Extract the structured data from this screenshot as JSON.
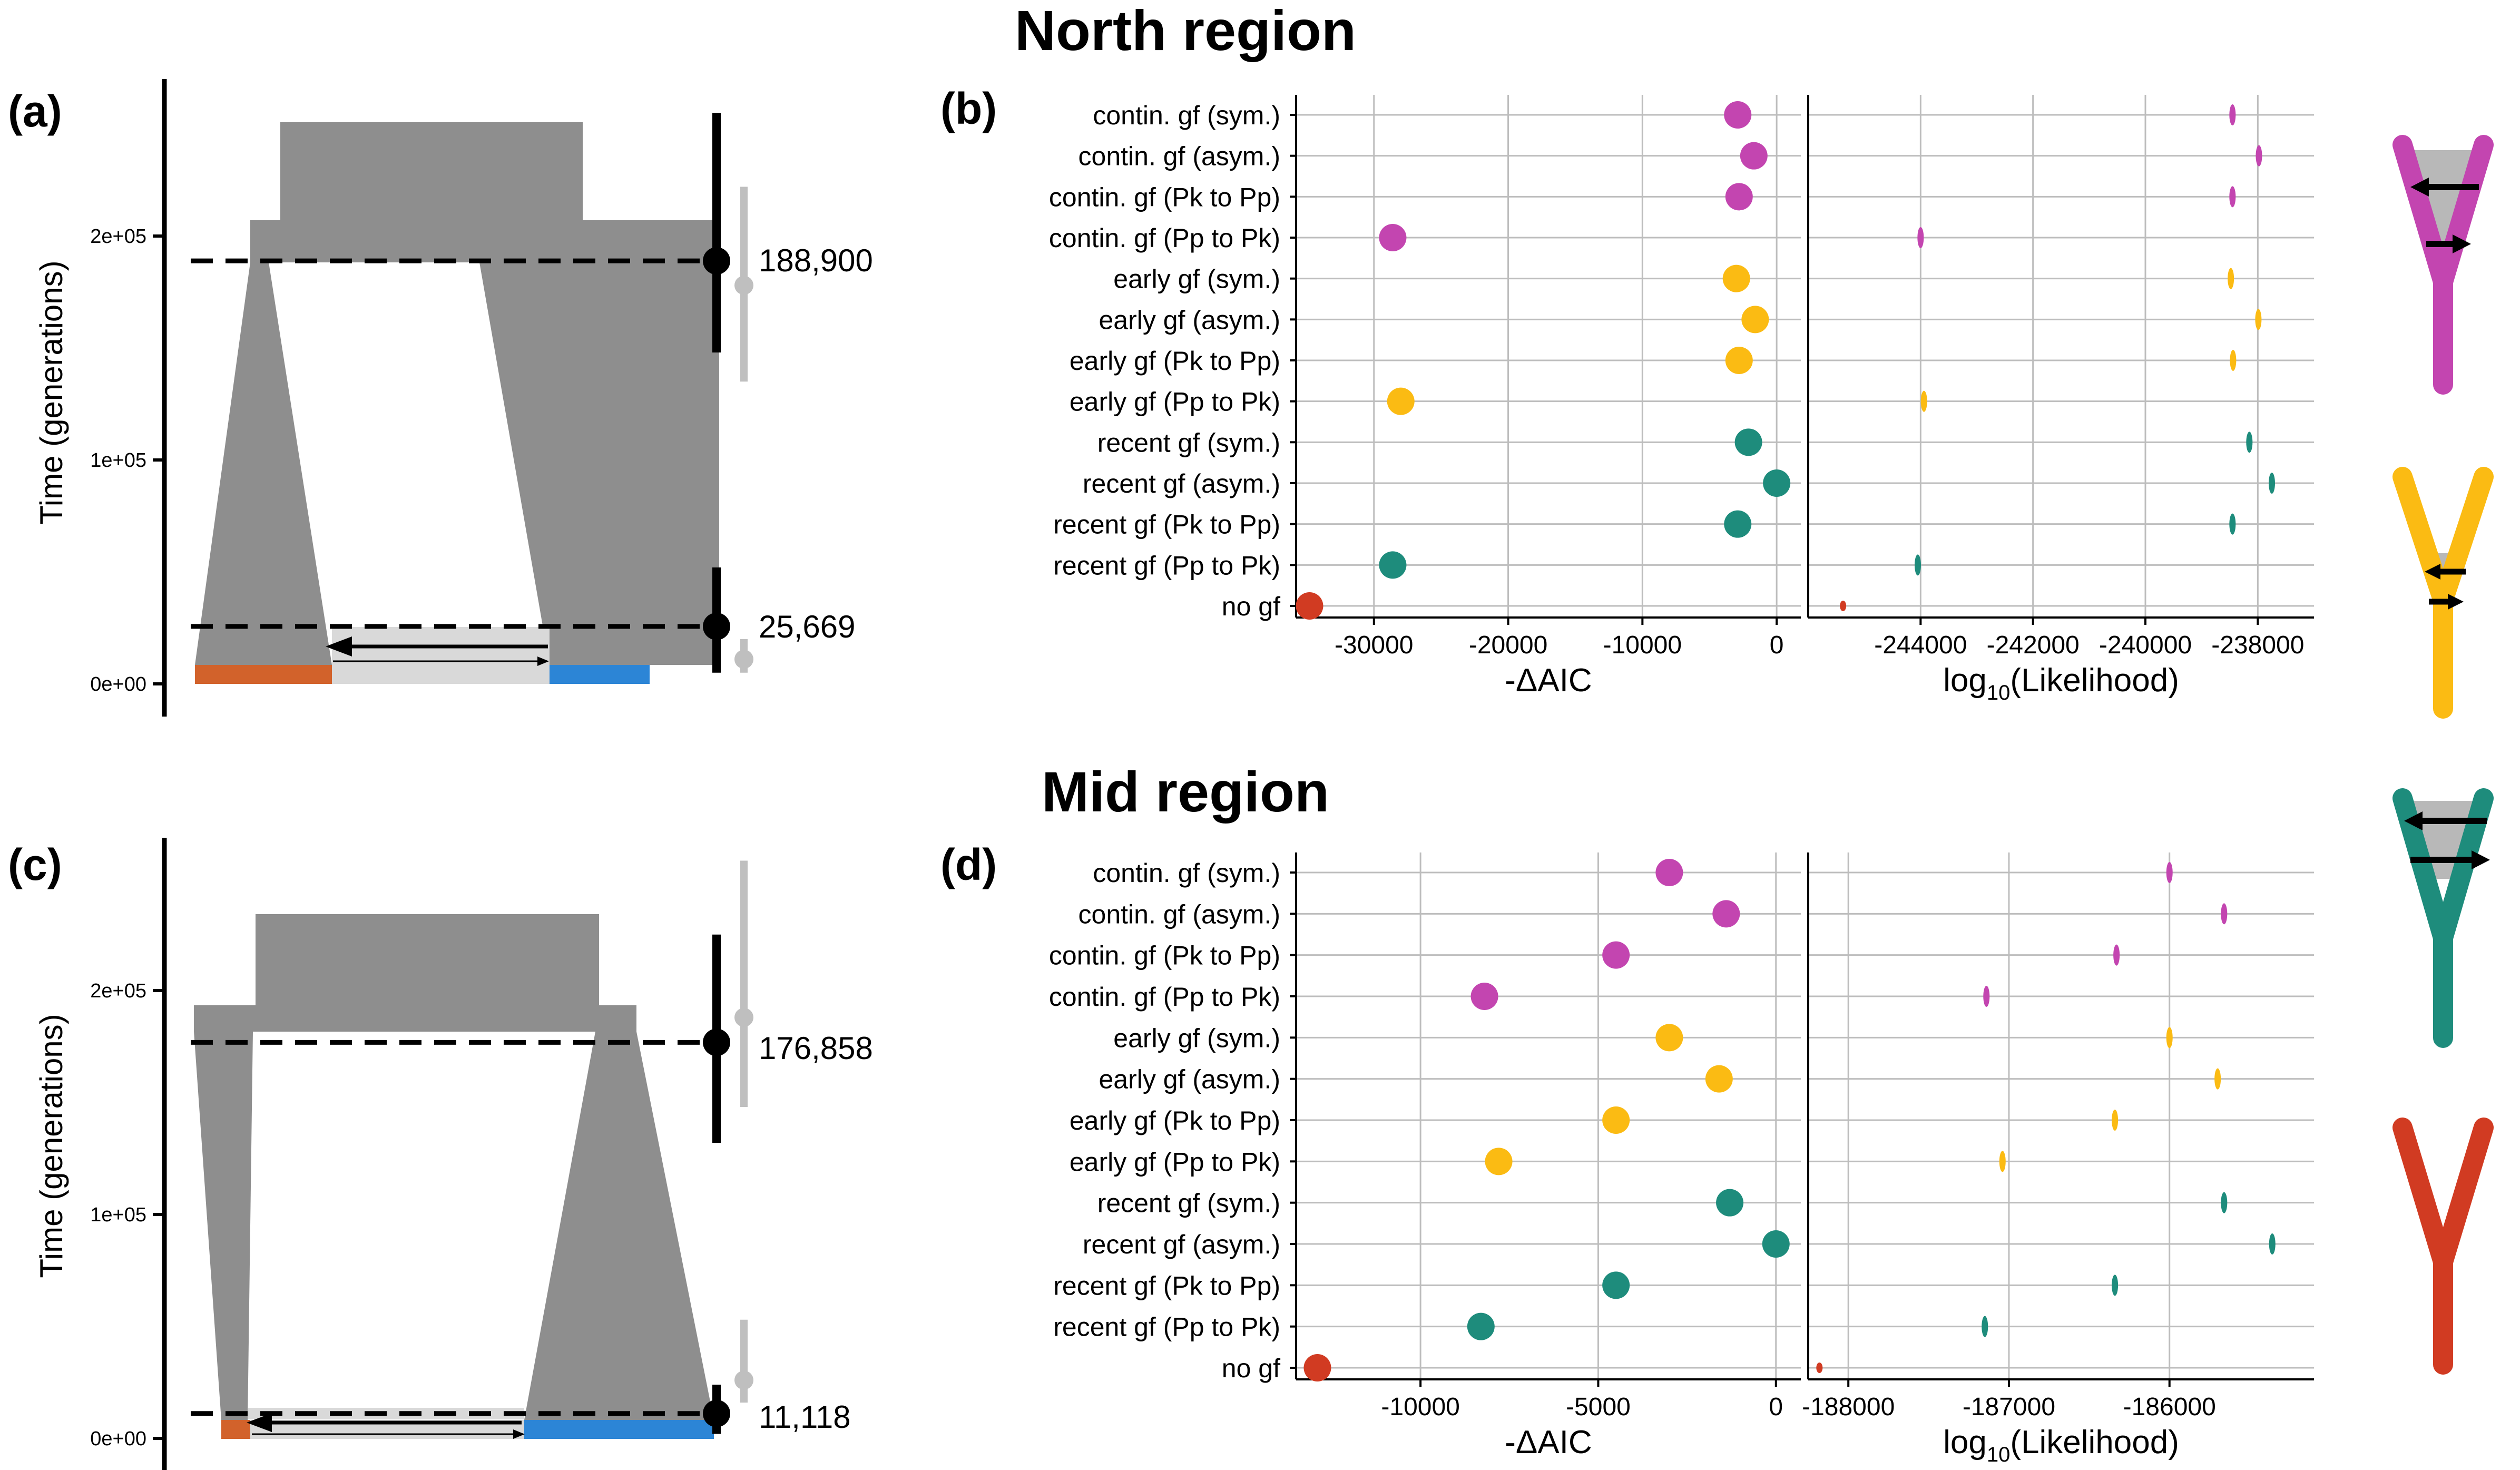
{
  "figure": {
    "north_title": "North region",
    "mid_title": "Mid region",
    "panel_labels": [
      "(a)",
      "(b)",
      "(c)",
      "(d)"
    ]
  },
  "colors": {
    "contin": "#C345B0",
    "early": "#FBBB13",
    "recent": "#1E8C7C",
    "nogf": "#D13B22",
    "orange_pop": "#D2622B",
    "blue_pop": "#2C85D6",
    "gray_pop": "#8E8E8E",
    "light_gray": "#D9D9D9"
  },
  "chart_data": [
    {
      "panel": "(a)",
      "type": "demography",
      "ylabel": "Time (generations)",
      "yticks": [
        "0e+00",
        "1e+05",
        "2e+05"
      ],
      "events": [
        {
          "time": 188900,
          "label": "188,900",
          "gray_ci": [
            135000,
            222000
          ],
          "black_ci": [
            148000,
            255000
          ],
          "gray_point": 178000
        },
        {
          "time": 25669,
          "label": "25,669",
          "gray_ci": [
            5000,
            20000
          ],
          "black_ci": [
            5000,
            52000
          ],
          "gray_point": 11000
        }
      ]
    },
    {
      "panel": "(b)",
      "type": "dot",
      "region": "North region",
      "categories": [
        "contin. gf (sym.)",
        "contin. gf (asym.)",
        "contin. gf (Pk to Pp)",
        "contin. gf (Pp to Pk)",
        "early gf (sym.)",
        "early gf (asym.)",
        "early gf (Pk to Pp)",
        "early gf (Pp to Pk)",
        "recent gf (sym.)",
        "recent gf (asym.)",
        "recent gf (Pk to Pp)",
        "recent gf (Pp to Pk)",
        "no gf"
      ],
      "groups": [
        "contin",
        "contin",
        "contin",
        "contin",
        "early",
        "early",
        "early",
        "early",
        "recent",
        "recent",
        "recent",
        "recent",
        "nogf"
      ],
      "left": {
        "xlabel": "-ΔAIC",
        "xlim": [
          -35800,
          1800
        ],
        "xticks": [
          -30000,
          -20000,
          -10000,
          0
        ],
        "xtick_labels": [
          "-30000",
          "-20000",
          "-10000",
          "0"
        ],
        "values": [
          -2900,
          -1700,
          -2800,
          -28600,
          -3000,
          -1600,
          -2800,
          -28000,
          -2100,
          0,
          -2900,
          -28600,
          -34800
        ]
      },
      "right": {
        "xlabel_main": "log",
        "xlabel_sub": "10",
        "xlabel_tail": "(Likelihood)",
        "xlim": [
          -246000,
          -237000
        ],
        "xticks": [
          -244000,
          -242000,
          -240000,
          -238000
        ],
        "xtick_labels": [
          "-244000",
          "-242000",
          "-240000",
          "-238000"
        ],
        "values": [
          -238450,
          -237980,
          -238450,
          -244000,
          -238480,
          -237990,
          -238440,
          -243940,
          -238150,
          -237750,
          -238450,
          -244050,
          -245380
        ]
      }
    },
    {
      "panel": "(c)",
      "type": "demography",
      "ylabel": "Time (generations)",
      "yticks": [
        "0e+00",
        "1e+05",
        "2e+05"
      ],
      "events": [
        {
          "time": 176858,
          "label": "176,858",
          "gray_ci": [
            148000,
            258000
          ],
          "black_ci": [
            132000,
            225000
          ],
          "gray_point": 188000
        },
        {
          "time": 11118,
          "label": "11,118",
          "gray_ci": [
            16000,
            53000
          ],
          "black_ci": [
            2000,
            24000
          ],
          "gray_point": 26000
        }
      ]
    },
    {
      "panel": "(d)",
      "type": "dot",
      "region": "Mid region",
      "categories": [
        "contin. gf (sym.)",
        "contin. gf (asym.)",
        "contin. gf (Pk to Pp)",
        "contin. gf (Pp to Pk)",
        "early gf (sym.)",
        "early gf (asym.)",
        "early gf (Pk to Pp)",
        "early gf (Pp to Pk)",
        "recent gf (sym.)",
        "recent gf (asym.)",
        "recent gf (Pk to Pp)",
        "recent gf (Pp to Pk)",
        "no gf"
      ],
      "groups": [
        "contin",
        "contin",
        "contin",
        "contin",
        "early",
        "early",
        "early",
        "early",
        "recent",
        "recent",
        "recent",
        "recent",
        "nogf"
      ],
      "left": {
        "xlabel": "-ΔAIC",
        "xlim": [
          -13500,
          700
        ],
        "xticks": [
          -10000,
          -5000,
          0
        ],
        "xtick_labels": [
          "-10000",
          "-5000",
          "0"
        ],
        "values": [
          -3000,
          -1400,
          -4500,
          -8200,
          -3000,
          -1600,
          -4500,
          -7800,
          -1300,
          0,
          -4500,
          -8300,
          -12900
        ]
      },
      "right": {
        "xlabel_main": "log",
        "xlabel_sub": "10",
        "xlabel_tail": "(Likelihood)",
        "xlim": [
          -188250,
          -185100
        ],
        "xticks": [
          -188000,
          -187000,
          -186000
        ],
        "xtick_labels": [
          "-188000",
          "-187000",
          "-186000"
        ],
        "values": [
          -186000,
          -185660,
          -186330,
          -187140,
          -186000,
          -185700,
          -186340,
          -187040,
          -185660,
          -185360,
          -186340,
          -187150,
          -188180
        ]
      }
    }
  ]
}
